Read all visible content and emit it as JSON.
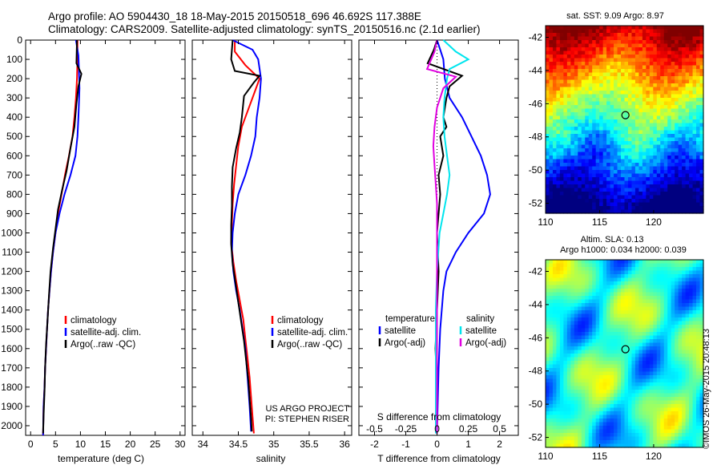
{
  "header": {
    "line1": "Argo profile: AO 5904430_18 18-May-2015 20150518_696 46.692S 117.388E",
    "line2": "Climatology: CARS2009. Satellite-adjusted climatology: synTS_20150516.nc (2.1d earlier)"
  },
  "colors": {
    "climatology": "#ff0000",
    "satellite": "#0000ff",
    "argo": "#000000",
    "sal_satellite": "#00e5ee",
    "sal_argo": "#e000e0"
  },
  "chart_data": [
    {
      "id": "temperature",
      "type": "line",
      "xlabel": "temperature (deg C)",
      "ylabel": "",
      "xlim": [
        -1,
        31
      ],
      "ylim": [
        2050,
        0
      ],
      "xticks": [
        "0",
        "5",
        "10",
        "15",
        "20",
        "25",
        "30"
      ],
      "yticks": [
        "0",
        "100",
        "200",
        "300",
        "400",
        "500",
        "600",
        "700",
        "800",
        "900",
        "1000",
        "1100",
        "1200",
        "1300",
        "1400",
        "1500",
        "1600",
        "1700",
        "1800",
        "1900",
        "2000"
      ],
      "legend": [
        "climatology",
        "satellite-adj. clim.",
        "Argo(..raw -QC)"
      ],
      "series": [
        {
          "name": "climatology",
          "color": "#ff0000",
          "points": [
            [
              9.4,
              0
            ],
            [
              9.4,
              100
            ],
            [
              9.3,
              200
            ],
            [
              9.1,
              300
            ],
            [
              8.8,
              400
            ],
            [
              8.4,
              500
            ],
            [
              7.7,
              600
            ],
            [
              6.9,
              700
            ],
            [
              6.2,
              800
            ],
            [
              5.5,
              900
            ],
            [
              5.0,
              1000
            ],
            [
              4.5,
              1100
            ],
            [
              4.1,
              1200
            ],
            [
              3.8,
              1300
            ],
            [
              3.5,
              1400
            ],
            [
              3.3,
              1500
            ],
            [
              3.1,
              1600
            ],
            [
              2.9,
              1700
            ],
            [
              2.8,
              1800
            ],
            [
              2.6,
              1900
            ],
            [
              2.5,
              2050
            ]
          ]
        },
        {
          "name": "satellite-adj. clim.",
          "color": "#0000ff",
          "points": [
            [
              9.1,
              0
            ],
            [
              9.6,
              80
            ],
            [
              9.7,
              150
            ],
            [
              9.8,
              250
            ],
            [
              9.6,
              400
            ],
            [
              9.4,
              500
            ],
            [
              9.0,
              600
            ],
            [
              8.0,
              700
            ],
            [
              6.8,
              800
            ],
            [
              5.8,
              900
            ],
            [
              5.0,
              1000
            ],
            [
              4.5,
              1100
            ],
            [
              4.1,
              1200
            ],
            [
              3.8,
              1300
            ],
            [
              3.5,
              1400
            ],
            [
              3.3,
              1500
            ],
            [
              3.1,
              1600
            ],
            [
              2.9,
              1700
            ],
            [
              2.8,
              1800
            ],
            [
              2.6,
              1900
            ],
            [
              2.5,
              2050
            ]
          ]
        },
        {
          "name": "Argo(..raw -QC)",
          "color": "#000000",
          "points": [
            [
              9.3,
              0
            ],
            [
              9.2,
              120
            ],
            [
              10.2,
              175
            ],
            [
              9.6,
              240
            ],
            [
              9.2,
              330
            ],
            [
              8.8,
              450
            ],
            [
              8.0,
              560
            ],
            [
              7.2,
              680
            ],
            [
              6.3,
              780
            ],
            [
              5.5,
              880
            ],
            [
              5.0,
              980
            ],
            [
              4.5,
              1080
            ],
            [
              4.0,
              1200
            ],
            [
              3.7,
              1320
            ],
            [
              3.4,
              1450
            ],
            [
              3.1,
              1580
            ],
            [
              2.9,
              1700
            ],
            [
              2.8,
              1820
            ],
            [
              2.6,
              1950
            ],
            [
              2.5,
              2040
            ]
          ]
        }
      ]
    },
    {
      "id": "salinity",
      "type": "line",
      "xlabel": "salinity",
      "ylabel": "",
      "xlim": [
        33.85,
        36.1
      ],
      "ylim": [
        2050,
        0
      ],
      "xticks": [
        "34",
        "34.5",
        "35",
        "35.5",
        "36"
      ],
      "legend": [
        "climatology",
        "satellite-adj. clim.",
        "Argo(..raw -QC)"
      ],
      "annotations": [
        "US ARGO PROJECT",
        "PI: STEPHEN RISER"
      ],
      "series": [
        {
          "name": "climatology",
          "color": "#ff0000",
          "points": [
            [
              34.45,
              0
            ],
            [
              34.45,
              60
            ],
            [
              34.6,
              130
            ],
            [
              34.8,
              200
            ],
            [
              34.7,
              300
            ],
            [
              34.6,
              400
            ],
            [
              34.55,
              450
            ],
            [
              34.5,
              550
            ],
            [
              34.47,
              650
            ],
            [
              34.44,
              750
            ],
            [
              34.42,
              850
            ],
            [
              34.41,
              950
            ],
            [
              34.4,
              1050
            ],
            [
              34.43,
              1150
            ],
            [
              34.47,
              1250
            ],
            [
              34.52,
              1350
            ],
            [
              34.57,
              1450
            ],
            [
              34.6,
              1550
            ],
            [
              34.63,
              1650
            ],
            [
              34.66,
              1750
            ],
            [
              34.68,
              1850
            ],
            [
              34.7,
              1950
            ],
            [
              34.72,
              2040
            ]
          ]
        },
        {
          "name": "satellite-adj. clim.",
          "color": "#0000ff",
          "points": [
            [
              34.42,
              0
            ],
            [
              34.7,
              50
            ],
            [
              34.78,
              100
            ],
            [
              34.82,
              200
            ],
            [
              34.8,
              300
            ],
            [
              34.76,
              400
            ],
            [
              34.74,
              500
            ],
            [
              34.68,
              600
            ],
            [
              34.6,
              700
            ],
            [
              34.5,
              800
            ],
            [
              34.45,
              900
            ],
            [
              34.42,
              1000
            ],
            [
              34.41,
              1100
            ],
            [
              34.43,
              1200
            ],
            [
              34.47,
              1300
            ],
            [
              34.52,
              1400
            ],
            [
              34.56,
              1500
            ],
            [
              34.6,
              1600
            ],
            [
              34.62,
              1700
            ],
            [
              34.64,
              1800
            ],
            [
              34.66,
              1900
            ],
            [
              34.68,
              2030
            ]
          ]
        },
        {
          "name": "Argo(..raw -QC)",
          "color": "#000000",
          "points": [
            [
              34.42,
              0
            ],
            [
              34.4,
              100
            ],
            [
              34.45,
              160
            ],
            [
              34.8,
              185
            ],
            [
              34.72,
              220
            ],
            [
              34.58,
              290
            ],
            [
              34.55,
              400
            ],
            [
              34.52,
              480
            ],
            [
              34.47,
              560
            ],
            [
              34.42,
              660
            ],
            [
              34.41,
              760
            ],
            [
              34.41,
              860
            ],
            [
              34.4,
              960
            ],
            [
              34.4,
              1060
            ],
            [
              34.42,
              1160
            ],
            [
              34.46,
              1260
            ],
            [
              34.5,
              1360
            ],
            [
              34.54,
              1460
            ],
            [
              34.58,
              1560
            ],
            [
              34.61,
              1660
            ],
            [
              34.64,
              1760
            ],
            [
              34.66,
              1860
            ],
            [
              34.68,
              1960
            ],
            [
              34.69,
              2030
            ]
          ]
        }
      ]
    },
    {
      "id": "difference",
      "type": "line",
      "xlabel": "T difference from climatology",
      "x2label": "S difference from climatology",
      "xlim": [
        -2.5,
        2.6
      ],
      "x2lim": [
        -0.625,
        0.65
      ],
      "ylim": [
        2050,
        0
      ],
      "xticks": [
        "-2",
        "-1",
        "0",
        "1",
        "2"
      ],
      "x2ticks": [
        "-0.5",
        "-0.25",
        "0",
        "0.25",
        "0.5"
      ],
      "legend_temperature": {
        "title": "temperature",
        "items": [
          "satellite",
          "Argo(-adj)"
        ]
      },
      "legend_salinity": {
        "title": "salinity",
        "items": [
          "satellite",
          "Argo(-adj)"
        ]
      },
      "series": [
        {
          "name": "temperature satellite",
          "color": "#0000ff",
          "points": [
            [
              0,
              0
            ],
            [
              0.1,
              50
            ],
            [
              0.2,
              100
            ],
            [
              0.25,
              200
            ],
            [
              0.4,
              300
            ],
            [
              0.8,
              400
            ],
            [
              1.1,
              500
            ],
            [
              1.4,
              600
            ],
            [
              1.6,
              700
            ],
            [
              1.7,
              800
            ],
            [
              1.5,
              900
            ],
            [
              1.0,
              1000
            ],
            [
              0.6,
              1100
            ],
            [
              0.3,
              1200
            ],
            [
              0.2,
              1300
            ],
            [
              0.1,
              1500
            ],
            [
              0.05,
              1700
            ],
            [
              0,
              2040
            ]
          ]
        },
        {
          "name": "temperature Argo(-adj)",
          "color": "#000000",
          "points": [
            [
              0,
              0
            ],
            [
              -0.1,
              50
            ],
            [
              -0.3,
              120
            ],
            [
              0.8,
              185
            ],
            [
              0.4,
              240
            ],
            [
              0.3,
              300
            ],
            [
              0.2,
              400
            ],
            [
              0.3,
              450
            ],
            [
              0.1,
              500
            ],
            [
              0.2,
              600
            ],
            [
              0.05,
              700
            ],
            [
              0.1,
              800
            ],
            [
              0,
              1000
            ],
            [
              0.05,
              1200
            ],
            [
              0,
              1400
            ],
            [
              -0.05,
              1600
            ],
            [
              0,
              1800
            ],
            [
              0,
              2040
            ]
          ]
        },
        {
          "name": "salinity satellite",
          "color": "#00e5ee",
          "points": [
            [
              0.05,
              0
            ],
            [
              0.15,
              60
            ],
            [
              0.25,
              100
            ],
            [
              0.1,
              150
            ],
            [
              0.08,
              200
            ],
            [
              0.06,
              300
            ],
            [
              0.05,
              400
            ],
            [
              0.06,
              500
            ],
            [
              0.08,
              600
            ],
            [
              0.1,
              700
            ],
            [
              0.08,
              800
            ],
            [
              0.05,
              900
            ],
            [
              0.02,
              1000
            ],
            [
              0,
              1200
            ],
            [
              -0.01,
              1400
            ],
            [
              -0.01,
              1600
            ],
            [
              -0.01,
              1800
            ],
            [
              -0.01,
              2040
            ]
          ]
        },
        {
          "name": "salinity Argo(-adj)",
          "color": "#e000e0",
          "points": [
            [
              0,
              0
            ],
            [
              -0.02,
              60
            ],
            [
              -0.08,
              150
            ],
            [
              0.15,
              190
            ],
            [
              0.05,
              250
            ],
            [
              0,
              350
            ],
            [
              -0.02,
              450
            ],
            [
              -0.03,
              550
            ],
            [
              -0.02,
              650
            ],
            [
              -0.01,
              750
            ],
            [
              0,
              850
            ],
            [
              0,
              1000
            ],
            [
              0,
              2040
            ]
          ]
        }
      ]
    },
    {
      "id": "sst_map",
      "type": "heatmap",
      "title": "sat. SST: 9.09 Argo: 8.97",
      "xlim": [
        110,
        124.6
      ],
      "ylim": [
        -52.6,
        -41.3
      ],
      "xticks": [
        "110",
        "115",
        "120"
      ],
      "yticks": [
        "-42",
        "-44",
        "-46",
        "-48",
        "-50",
        "-52"
      ],
      "marker": {
        "lon": 117.388,
        "lat": -46.692
      }
    },
    {
      "id": "sla_map",
      "type": "heatmap",
      "title": "Altim. SLA: 0.13",
      "subtitle": "Argo h1000: 0.034 h2000: 0.039",
      "xlim": [
        110,
        124.6
      ],
      "ylim": [
        -52.6,
        -41.3
      ],
      "xticks": [
        "110",
        "115",
        "120"
      ],
      "yticks": [
        "-42",
        "-44",
        "-46",
        "-48",
        "-50",
        "-52"
      ],
      "marker": {
        "lon": 117.388,
        "lat": -46.692
      }
    }
  ],
  "stamp": "©IMOS 26-May-2015 20:48:13"
}
